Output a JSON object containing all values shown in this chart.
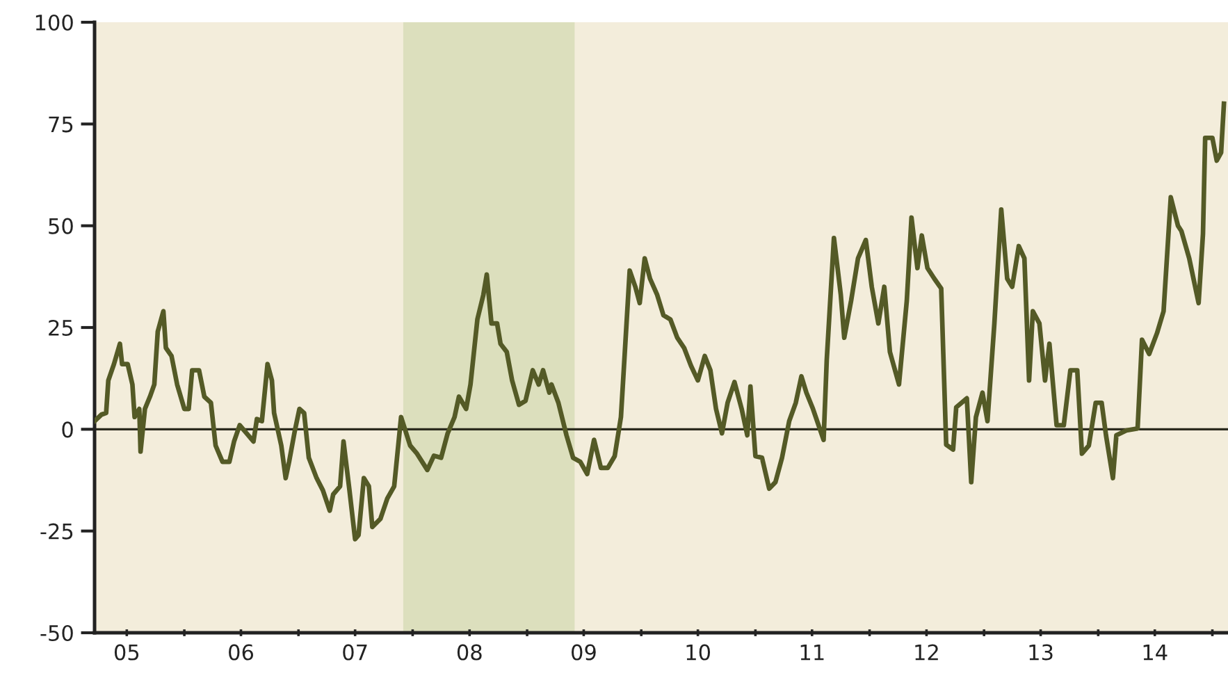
{
  "chart_data": {
    "type": "line",
    "x": [
      "2005-03-20",
      "2005-04-11",
      "2005-04-26",
      "2005-05-03",
      "2005-05-21",
      "2005-06-09",
      "2005-06-16",
      "2005-07-04",
      "2005-07-19",
      "2005-07-26",
      "2005-08-10",
      "2005-08-14",
      "2005-08-28",
      "2005-09-13",
      "2005-09-27",
      "2005-10-08",
      "2005-10-26",
      "2005-11-03",
      "2005-11-21",
      "2005-12-09",
      "2006-01-01",
      "2006-01-15",
      "2006-01-26",
      "2006-02-17",
      "2006-03-06",
      "2006-03-27",
      "2006-04-11",
      "2006-05-03",
      "2006-05-25",
      "2006-06-09",
      "2006-06-27",
      "2006-07-19",
      "2006-08-10",
      "2006-08-21",
      "2006-09-06",
      "2006-09-24",
      "2006-10-08",
      "2006-10-15",
      "2006-11-07",
      "2006-11-21",
      "2006-12-02",
      "2006-12-20",
      "2007-01-04",
      "2007-01-19",
      "2007-02-03",
      "2007-02-28",
      "2007-03-20",
      "2007-04-11",
      "2007-04-22",
      "2007-05-14",
      "2007-05-25",
      "2007-06-13",
      "2007-07-01",
      "2007-07-12",
      "2007-07-29",
      "2007-08-14",
      "2007-08-25",
      "2007-09-20",
      "2007-10-12",
      "2007-11-03",
      "2007-11-25",
      "2007-12-24",
      "2008-01-15",
      "2008-02-17",
      "2008-03-09",
      "2008-04-01",
      "2008-04-22",
      "2008-05-14",
      "2008-05-28",
      "2008-06-20",
      "2008-07-04",
      "2008-07-26",
      "2008-08-14",
      "2008-08-25",
      "2008-09-09",
      "2008-09-27",
      "2008-10-08",
      "2008-10-28",
      "2008-11-14",
      "2008-12-06",
      "2008-12-27",
      "2009-01-19",
      "2009-02-07",
      "2009-02-21",
      "2009-03-13",
      "2009-03-20",
      "2009-04-11",
      "2009-05-07",
      "2009-05-28",
      "2009-06-20",
      "2009-07-12",
      "2009-08-03",
      "2009-08-25",
      "2009-09-16",
      "2009-10-08",
      "2009-10-28",
      "2009-11-25",
      "2009-12-13",
      "2009-12-27",
      "2010-01-12",
      "2010-01-29",
      "2010-02-21",
      "2010-03-13",
      "2010-04-04",
      "2010-04-26",
      "2010-05-18",
      "2010-06-09",
      "2010-07-01",
      "2010-07-23",
      "2010-08-10",
      "2010-08-28",
      "2010-09-16",
      "2010-10-04",
      "2010-10-26",
      "2010-11-18",
      "2010-12-06",
      "2010-12-16",
      "2011-01-01",
      "2011-01-22",
      "2011-02-14",
      "2011-03-06",
      "2011-03-27",
      "2011-04-19",
      "2011-05-10",
      "2011-05-28",
      "2011-06-13",
      "2011-07-04",
      "2011-08-07",
      "2011-08-17",
      "2011-09-09",
      "2011-10-01",
      "2011-10-12",
      "2011-11-03",
      "2011-11-25",
      "2011-12-20",
      "2012-01-08",
      "2012-01-29",
      "2012-02-17",
      "2012-03-06",
      "2012-04-04",
      "2012-04-29",
      "2012-05-14",
      "2012-06-02",
      "2012-06-16",
      "2012-07-04",
      "2012-07-26",
      "2012-08-17",
      "2012-09-02",
      "2012-09-24",
      "2012-10-04",
      "2012-11-07",
      "2012-11-21",
      "2012-12-06",
      "2012-12-27",
      "2013-01-12",
      "2013-02-03",
      "2013-02-25",
      "2013-03-16",
      "2013-04-01",
      "2013-04-22",
      "2013-05-10",
      "2013-05-25",
      "2013-06-06",
      "2013-06-27",
      "2013-07-15",
      "2013-07-29",
      "2013-08-21",
      "2013-09-13",
      "2013-10-04",
      "2013-10-26",
      "2013-11-10",
      "2013-12-02",
      "2013-12-24",
      "2014-01-12",
      "2014-01-26",
      "2014-02-17",
      "2014-02-28",
      "2014-04-01",
      "2014-05-07",
      "2014-05-21",
      "2014-06-13",
      "2014-07-08",
      "2014-07-29",
      "2014-08-21",
      "2014-09-13",
      "2014-09-24",
      "2014-10-19",
      "2014-11-18",
      "2014-12-02",
      "2014-12-09",
      "2015-01-01",
      "2015-01-15",
      "2015-01-29",
      "2015-02-07"
    ],
    "series": [
      {
        "color": "#545a26",
        "values": [
          2,
          3.6,
          4,
          12,
          16,
          21,
          16,
          16,
          11,
          3,
          5,
          -5.5,
          5,
          8,
          11,
          24,
          29,
          20,
          18,
          11,
          5,
          5,
          14.5,
          14.5,
          8,
          6.5,
          -4,
          -8,
          -8,
          -3,
          1,
          -1,
          -3,
          2.5,
          2,
          16,
          12,
          4,
          -4,
          -12,
          -8,
          -0.5,
          5,
          4,
          -7,
          -12,
          -15,
          -20,
          -16,
          -14,
          -3,
          -15,
          -27,
          -26,
          -12,
          -14,
          -24,
          -22,
          -17,
          -14,
          3,
          -4,
          -6,
          -10,
          -6.5,
          -7,
          -1,
          3,
          8,
          5,
          11,
          27,
          33,
          38,
          26,
          26,
          21,
          19,
          12,
          6,
          7,
          14.5,
          11,
          14.5,
          9,
          11,
          6.5,
          -1.5,
          -7,
          -8,
          -11,
          -2.6,
          -9.5,
          -9.5,
          -6.6,
          3,
          39,
          35,
          31,
          42,
          37,
          33,
          28,
          27,
          22.5,
          20,
          15.6,
          12,
          18,
          14.5,
          5,
          -1,
          6.5,
          11.6,
          5,
          -1.5,
          10.5,
          -6.6,
          -7,
          -14.6,
          -13,
          -7,
          2,
          6.5,
          13,
          9,
          5,
          -2.6,
          17,
          47,
          33,
          22.5,
          31.6,
          42,
          46.5,
          35,
          26,
          35,
          19,
          11,
          31.6,
          52,
          39.6,
          47.6,
          39.6,
          37,
          34.6,
          -3.8,
          -5,
          5.4,
          7.6,
          -13,
          3,
          9,
          2,
          26,
          54,
          37,
          35,
          45,
          42,
          12,
          29,
          26,
          12,
          21,
          1,
          1,
          14.5,
          14.5,
          -6,
          -4,
          6.5,
          6.5,
          -1.5,
          -12,
          -1.5,
          -0.3,
          0.2,
          22,
          18.5,
          23.6,
          29,
          57,
          50,
          48.7,
          42,
          31,
          48,
          71.6,
          71.6,
          66,
          68,
          80
        ]
      }
    ],
    "xlim": [
      "2005-03-20",
      "2015-02-20"
    ],
    "xticks": [
      {
        "value": "2005-07-01",
        "label": "05"
      },
      {
        "value": "2006-01-01",
        "label": null
      },
      {
        "value": "2006-07-01",
        "label": "06"
      },
      {
        "value": "2007-01-01",
        "label": null
      },
      {
        "value": "2007-07-01",
        "label": "07"
      },
      {
        "value": "2008-01-01",
        "label": null
      },
      {
        "value": "2008-07-01",
        "label": "08"
      },
      {
        "value": "2009-01-01",
        "label": null
      },
      {
        "value": "2009-07-01",
        "label": "09"
      },
      {
        "value": "2010-01-01",
        "label": null
      },
      {
        "value": "2010-07-01",
        "label": "10"
      },
      {
        "value": "2011-01-01",
        "label": null
      },
      {
        "value": "2011-07-01",
        "label": "11"
      },
      {
        "value": "2012-01-01",
        "label": null
      },
      {
        "value": "2012-07-01",
        "label": "12"
      },
      {
        "value": "2013-01-01",
        "label": null
      },
      {
        "value": "2013-07-01",
        "label": "13"
      },
      {
        "value": "2014-01-01",
        "label": null
      },
      {
        "value": "2014-07-01",
        "label": "14"
      },
      {
        "value": "2015-01-01",
        "label": null
      }
    ],
    "ylim": [
      -50,
      100
    ],
    "yticks": [
      -50,
      -25,
      0,
      25,
      50,
      75,
      100
    ],
    "ref_lines": [
      {
        "axis": "y",
        "value": 0,
        "color": "#2b2b1e"
      }
    ],
    "bands": [
      {
        "axis": "x",
        "from": "2007-12-02",
        "to": "2009-06-02",
        "color": "#dcdfbd"
      }
    ],
    "grid": false,
    "legend": false,
    "line_style": "solid",
    "marker": "none"
  }
}
